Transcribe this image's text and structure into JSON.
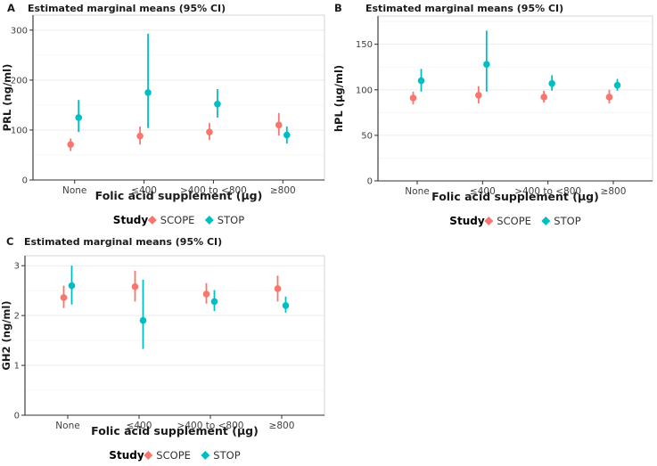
{
  "figure": {
    "description": "Three-panel figure of estimated marginal means with 95% confidence intervals for placental hormones by folic acid supplement group",
    "panel_ids": [
      "A",
      "B",
      "C"
    ]
  },
  "legend": {
    "title": "Study",
    "items": [
      {
        "label": "SCOPE",
        "color": "#F8766D"
      },
      {
        "label": "STOP",
        "color": "#00BFC4"
      }
    ]
  },
  "colors": {
    "scope": "#F8766D",
    "stop": "#00BFC4",
    "axis_line": "#2f2f2f",
    "tick_label": "#404040",
    "panel_border": "#d6d6d6",
    "grid_major": "#ebebeb",
    "grid_minor": "#f4f4f4",
    "title_text": "#1a1a1a"
  },
  "chart_data": [
    {
      "panel": "A",
      "type": "pointrange",
      "title": "Estimated marginal means (95% CI)",
      "xlabel": "Folic acid supplement (μg)",
      "ylabel": "PRL (ng/ml)",
      "categories": [
        "None",
        "≤400",
        ">400 to <800",
        "≥800"
      ],
      "ylim": [
        0,
        330
      ],
      "yticks": [
        0,
        100,
        200,
        300
      ],
      "grid": true,
      "legend_title": "Study",
      "legend_position": "bottom",
      "series": [
        {
          "name": "SCOPE",
          "color": "#F8766D",
          "mean": [
            71,
            88,
            96,
            110
          ],
          "lower": [
            58,
            71,
            80,
            89
          ],
          "upper": [
            83,
            107,
            114,
            134
          ]
        },
        {
          "name": "STOP",
          "color": "#00BFC4",
          "mean": [
            125,
            175,
            152,
            90
          ],
          "lower": [
            96,
            104,
            125,
            73
          ],
          "upper": [
            160,
            293,
            182,
            107
          ]
        }
      ]
    },
    {
      "panel": "B",
      "type": "pointrange",
      "title": "Estimated marginal means (95% CI)",
      "xlabel": "Folic acid supplement (μg)",
      "ylabel": "hPL (μg/ml)",
      "categories": [
        "None",
        "≤400",
        ">400 to <800",
        "≥800"
      ],
      "ylim": [
        0,
        181
      ],
      "yticks": [
        0,
        50,
        100,
        150
      ],
      "grid": true,
      "legend_title": "Study",
      "legend_position": "bottom",
      "series": [
        {
          "name": "SCOPE",
          "color": "#F8766D",
          "mean": [
            91,
            94,
            92,
            92
          ],
          "lower": [
            84,
            85,
            86,
            85
          ],
          "upper": [
            98,
            104,
            99,
            100
          ]
        },
        {
          "name": "STOP",
          "color": "#00BFC4",
          "mean": [
            110,
            128,
            107,
            105
          ],
          "lower": [
            98,
            98,
            99,
            99
          ],
          "upper": [
            123,
            165,
            116,
            112
          ]
        }
      ]
    },
    {
      "panel": "C",
      "type": "pointrange",
      "title": "Estimated marginal means (95% CI)",
      "xlabel": "Folic acid supplement (μg)",
      "ylabel": "GH2 (ng/ml)",
      "categories": [
        "None",
        "≤400",
        ">400 to <800",
        "≥800"
      ],
      "ylim": [
        0,
        3.2
      ],
      "yticks": [
        0,
        1,
        2,
        3
      ],
      "grid": true,
      "legend_title": "Study",
      "legend_position": "bottom",
      "series": [
        {
          "name": "SCOPE",
          "color": "#F8766D",
          "mean": [
            2.36,
            2.58,
            2.43,
            2.54
          ],
          "lower": [
            2.15,
            2.28,
            2.24,
            2.28
          ],
          "upper": [
            2.6,
            2.9,
            2.65,
            2.8
          ]
        },
        {
          "name": "STOP",
          "color": "#00BFC4",
          "mean": [
            2.6,
            1.9,
            2.28,
            2.2
          ],
          "lower": [
            2.22,
            1.33,
            2.09,
            2.06
          ],
          "upper": [
            3.0,
            2.72,
            2.51,
            2.38
          ]
        }
      ]
    }
  ]
}
